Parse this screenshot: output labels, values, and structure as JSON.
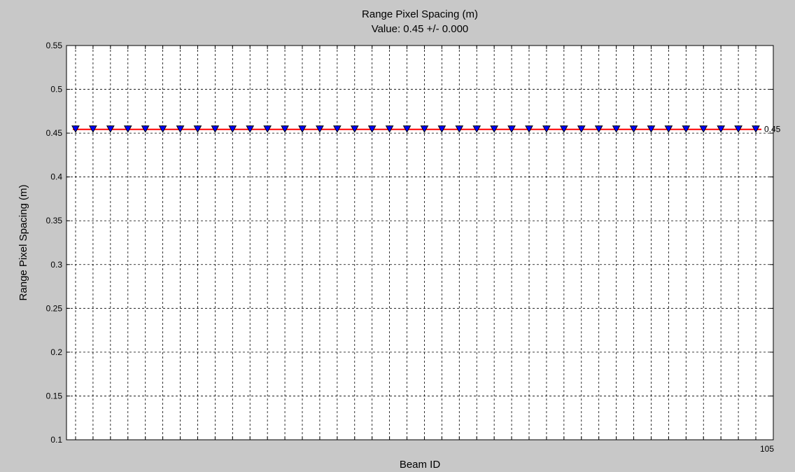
{
  "chart_data": {
    "type": "line",
    "title": "Range Pixel Spacing (m)",
    "subtitle": "Value: 0.45 +/- 0.000",
    "xlabel": "Beam ID",
    "ylabel": "Range Pixel Spacing (m)",
    "ylim": [
      0.1,
      0.55
    ],
    "yticks": [
      0.1,
      0.15,
      0.2,
      0.25,
      0.3,
      0.35,
      0.4,
      0.45,
      0.5,
      0.55
    ],
    "ytick_labels": [
      "0.1",
      "0.15",
      "0.2",
      "0.25",
      "0.3",
      "0.35",
      "0.4",
      "0.45",
      "0.5",
      "0.55"
    ],
    "grid": true,
    "x_categories_count": 40,
    "last_x_tick_label": "105",
    "series": [
      {
        "values": [
          0.4543,
          0.4543,
          0.4543,
          0.4543,
          0.4543,
          0.4543,
          0.4543,
          0.4543,
          0.4543,
          0.4543,
          0.4543,
          0.4543,
          0.4543,
          0.4543,
          0.4543,
          0.4543,
          0.4543,
          0.4543,
          0.4543,
          0.4543,
          0.4543,
          0.4543,
          0.4543,
          0.4543,
          0.4543,
          0.4543,
          0.4543,
          0.4543,
          0.4543,
          0.4543,
          0.4543,
          0.4543,
          0.4543,
          0.4543,
          0.4543,
          0.4543,
          0.4543,
          0.4543,
          0.4543,
          0.4543
        ],
        "color": "#0000ff",
        "marker": "triangle"
      }
    ],
    "mean_line": {
      "value": 0.4543,
      "color": "#ff0000"
    },
    "end_annotation": "0.45",
    "colors": {
      "background": "#c8c8c8",
      "plot": "#ffffff",
      "marker_outline": "#000000",
      "marker_fill": "#0000ff"
    }
  }
}
